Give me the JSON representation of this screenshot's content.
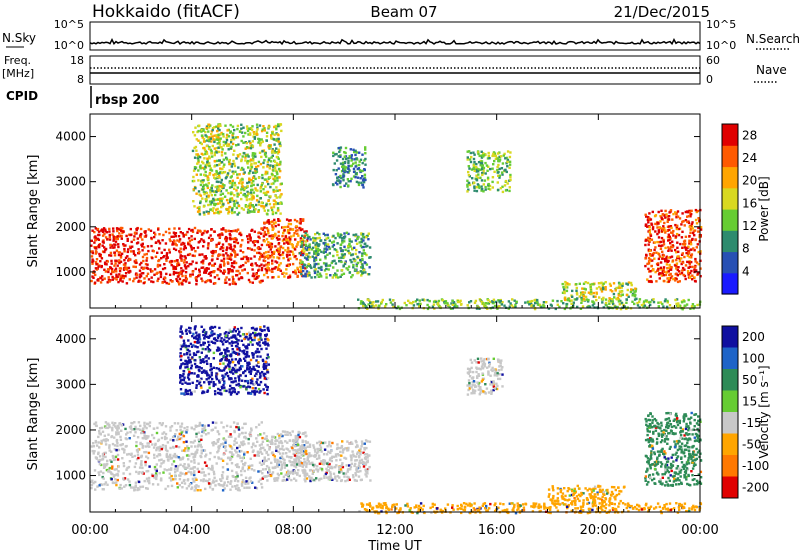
{
  "header": {
    "station": "Hokkaido (fitACF)",
    "beam": "Beam 07",
    "date": "21/Dec/2015"
  },
  "nsky_panel": {
    "label": "N.Sky",
    "left_ticks": [
      "10^5",
      "10^0"
    ],
    "right_ticks": [
      "10^5",
      "10^0"
    ],
    "legend": "N.Search"
  },
  "freq_panel": {
    "label_line1": "Freq.",
    "label_line2": "[MHz]",
    "left_ticks": [
      "18",
      "8"
    ],
    "right_ticks": [
      "60",
      "0"
    ],
    "legend": "Nave"
  },
  "cpid_panel": {
    "label": "CPID",
    "mode": "rbsp 200"
  },
  "chart_data": [
    {
      "type": "heatmap",
      "name": "power",
      "ylabel": "Slant Range [km]",
      "xlabel": "Time UT",
      "x_ticks": [
        "00:00",
        "04:00",
        "08:00",
        "12:00",
        "16:00",
        "20:00",
        "00:00"
      ],
      "x_range_hours": [
        0,
        24
      ],
      "y_ticks": [
        1000,
        2000,
        3000,
        4000
      ],
      "y_range_km": [
        200,
        4500
      ],
      "colorbar": {
        "label": "Power [dB]",
        "ticks": [
          4,
          8,
          12,
          16,
          20,
          24,
          28
        ],
        "range": [
          0,
          30
        ],
        "colors": [
          "#1a1aff",
          "#2850b4",
          "#2e8b6e",
          "#66cc33",
          "#d8d820",
          "#ffa500",
          "#ff5a00",
          "#e00000"
        ]
      },
      "regions": [
        {
          "t0": 0,
          "t1": 6.8,
          "r0": 750,
          "r1": 2000,
          "level": 28
        },
        {
          "t0": 6.8,
          "t1": 8.5,
          "r0": 900,
          "r1": 2200,
          "level": 24
        },
        {
          "t0": 8.2,
          "t1": 11.0,
          "r0": 900,
          "r1": 1900,
          "level": 10
        },
        {
          "t0": 4.0,
          "t1": 7.5,
          "r0": 2300,
          "r1": 4300,
          "level": 14
        },
        {
          "t0": 9.5,
          "t1": 10.8,
          "r0": 2900,
          "r1": 3800,
          "level": 8
        },
        {
          "t0": 14.8,
          "t1": 16.5,
          "r0": 2800,
          "r1": 3700,
          "level": 12
        },
        {
          "t0": 10.5,
          "t1": 24,
          "r0": 200,
          "r1": 420,
          "level": 12
        },
        {
          "t0": 18.5,
          "t1": 21.5,
          "r0": 400,
          "r1": 800,
          "level": 14
        },
        {
          "t0": 21.8,
          "t1": 24,
          "r0": 800,
          "r1": 2400,
          "level": 26
        }
      ]
    },
    {
      "type": "heatmap",
      "name": "velocity",
      "ylabel": "Slant Range [km]",
      "xlabel": "Time UT",
      "x_ticks": [
        "00:00",
        "04:00",
        "08:00",
        "12:00",
        "16:00",
        "20:00",
        "00:00"
      ],
      "x_range_hours": [
        0,
        24
      ],
      "y_ticks": [
        1000,
        2000,
        3000,
        4000
      ],
      "y_range_km": [
        200,
        4500
      ],
      "colorbar": {
        "label": "Velocity [m s⁻¹]",
        "ticks": [
          "200",
          "100",
          "50",
          "15",
          "-15",
          "-50",
          "-100",
          "-200"
        ],
        "colors": [
          "#1010a0",
          "#1e64c8",
          "#2e8b57",
          "#66cc33",
          "#c8c8c8",
          "#ffa500",
          "#ff7800",
          "#e00000"
        ]
      },
      "regions": [
        {
          "t0": 0,
          "t1": 6.8,
          "r0": 700,
          "r1": 2200,
          "level": "-15"
        },
        {
          "t0": 6.8,
          "t1": 8.5,
          "r0": 900,
          "r1": 2000,
          "level": "-15"
        },
        {
          "t0": 8.0,
          "t1": 11.0,
          "r0": 900,
          "r1": 1800,
          "level": "-15"
        },
        {
          "t0": 3.5,
          "t1": 7.0,
          "r0": 2800,
          "r1": 4300,
          "level": "200"
        },
        {
          "t0": 10.5,
          "t1": 24,
          "r0": 200,
          "r1": 420,
          "level": "-50"
        },
        {
          "t0": 18.0,
          "t1": 21.0,
          "r0": 400,
          "r1": 800,
          "level": "-50"
        },
        {
          "t0": 21.8,
          "t1": 24,
          "r0": 800,
          "r1": 2400,
          "level": "50"
        },
        {
          "t0": 14.8,
          "t1": 16.2,
          "r0": 2800,
          "r1": 3600,
          "level": "-15"
        }
      ]
    }
  ]
}
